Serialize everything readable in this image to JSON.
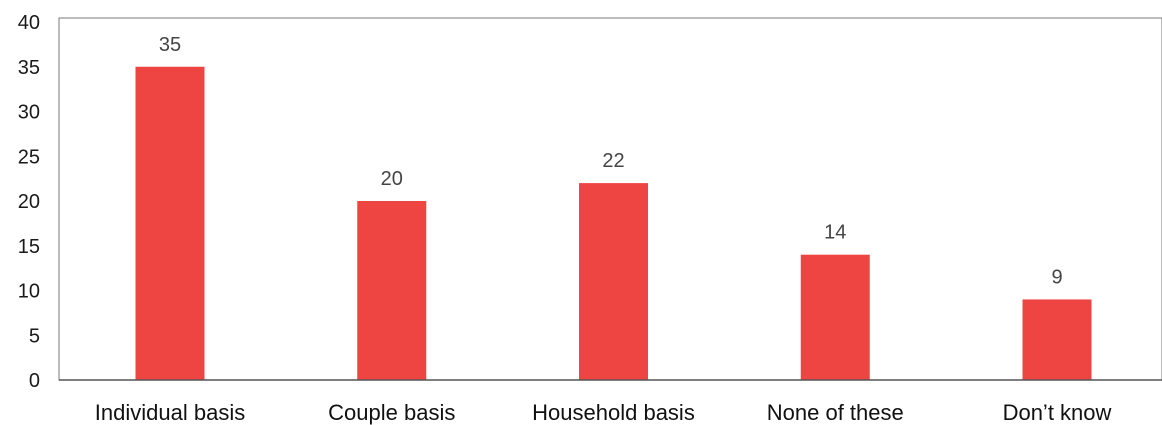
{
  "chart_data": {
    "type": "bar",
    "title": "",
    "xlabel": "",
    "ylabel": "",
    "categories": [
      "Individual basis",
      "Couple basis",
      "Household basis",
      "None of these",
      "Don’t know"
    ],
    "values": [
      35,
      20,
      22,
      14,
      9
    ],
    "data_labels": [
      "35",
      "20",
      "22",
      "14",
      "9"
    ],
    "ylim": [
      0,
      40
    ],
    "yticks": [
      0,
      5,
      10,
      15,
      20,
      25,
      30,
      35,
      40
    ],
    "grid": false,
    "legend": "none",
    "colors": {
      "bar": "#EE4542",
      "axis": "#555555",
      "plot_border": "#7a7a7a"
    }
  }
}
